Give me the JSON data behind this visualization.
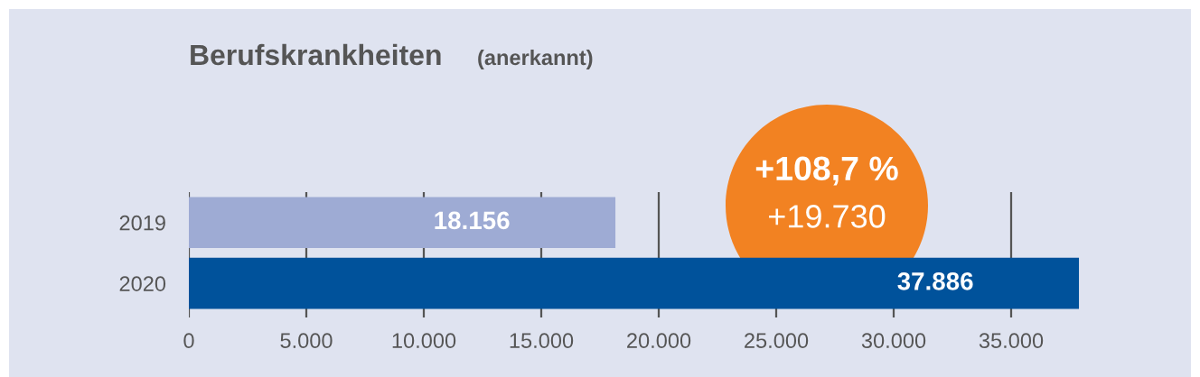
{
  "chart_data": {
    "type": "bar",
    "orientation": "horizontal",
    "title": "Berufskrankheiten",
    "subtitle": "(anerkannt)",
    "categories": [
      "2019",
      "2020"
    ],
    "values": [
      18156,
      37886
    ],
    "colors": [
      "#9eabd4",
      "#00529b"
    ],
    "value_labels": [
      "18.156",
      "37.886"
    ],
    "xlim": [
      0,
      38000
    ],
    "xticks": [
      0,
      {
        "value": 5000,
        "label": "5.000"
      },
      {
        "value": 10000,
        "label": "10.000"
      },
      {
        "value": 15000,
        "label": "15.000"
      },
      {
        "value": 20000,
        "label": "20.000"
      },
      {
        "value": 25000,
        "label": "25.000"
      },
      {
        "value": 30000,
        "label": "30.000"
      },
      {
        "value": 35000,
        "label": "35.000"
      }
    ],
    "grid": "x",
    "annotations": [
      "+108,7 %",
      "+19.730"
    ]
  }
}
